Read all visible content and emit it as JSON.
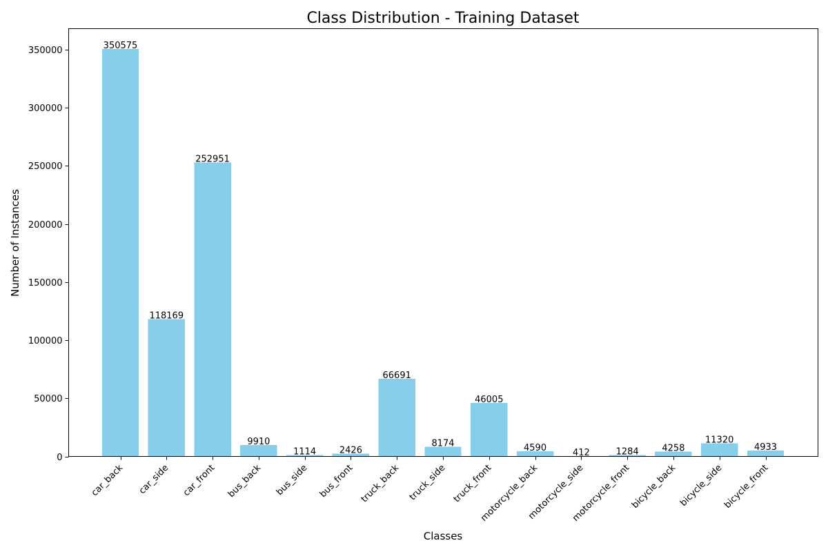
{
  "chart_data": {
    "type": "bar",
    "title": "Class Distribution - Training Dataset",
    "xlabel": "Classes",
    "ylabel": "Number of Instances",
    "categories": [
      "car_back",
      "car_side",
      "car_front",
      "bus_back",
      "bus_side",
      "bus_front",
      "truck_back",
      "truck_side",
      "truck_front",
      "motorcycle_back",
      "motorcycle_side",
      "motorcycle_front",
      "bicycle_back",
      "bicycle_side",
      "bicycle_front"
    ],
    "values": [
      350575,
      118169,
      252951,
      9910,
      1114,
      2426,
      66691,
      8174,
      46005,
      4590,
      412,
      1284,
      4258,
      11320,
      4933
    ],
    "data_labels": [
      "350575",
      "118169",
      "252951",
      "9910",
      "1114",
      "2426",
      "66691",
      "8174",
      "46005",
      "4590",
      "412",
      "1284",
      "4258",
      "11320",
      "4933"
    ],
    "y_ticks": [
      0,
      50000,
      100000,
      150000,
      200000,
      250000,
      300000,
      350000
    ],
    "y_tick_labels": [
      "0",
      "50000",
      "100000",
      "150000",
      "200000",
      "250000",
      "300000",
      "350000"
    ],
    "ylim": [
      0,
      368104
    ],
    "grid": false,
    "legend": "none",
    "colors": {
      "bar": "#87ceeb",
      "axis": "#000000",
      "background": "#ffffff"
    }
  }
}
